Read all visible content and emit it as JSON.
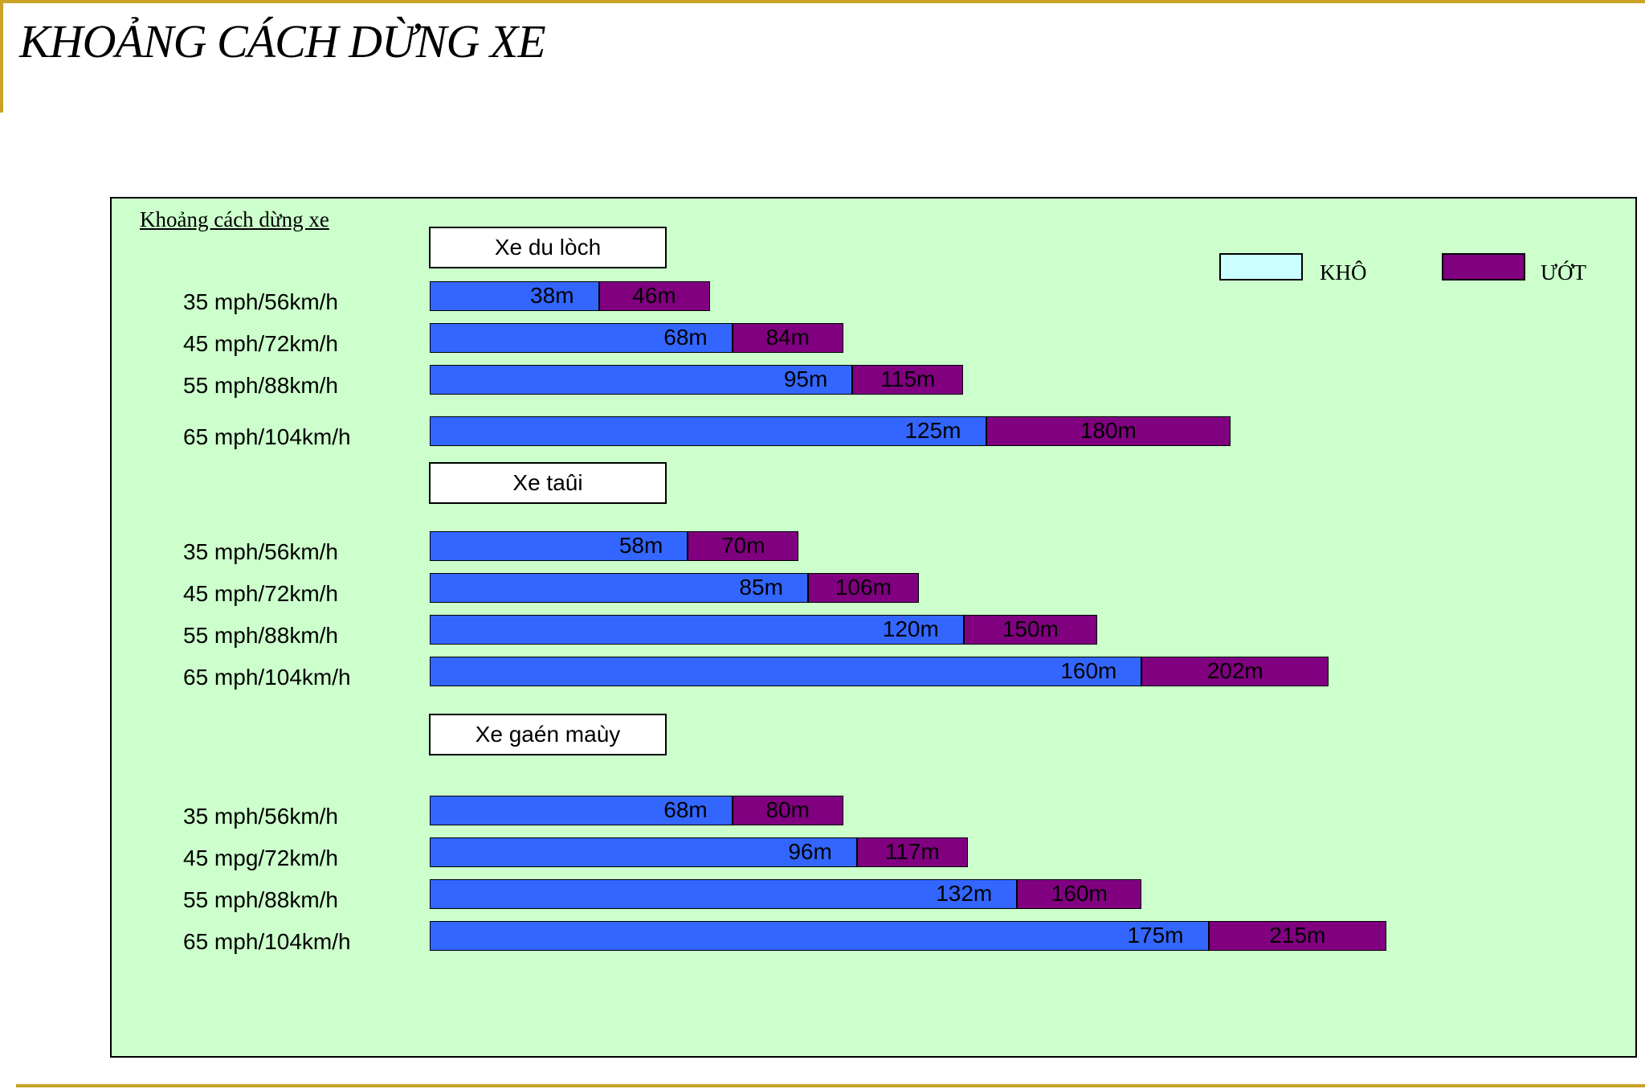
{
  "title": "KHOẢNG CÁCH DỪNG XE",
  "chart_data": {
    "type": "bar",
    "orientation": "horizontal",
    "stacked": true,
    "caption": "Khoảng cách dừng xe",
    "legend": [
      {
        "label": "KHÔ",
        "color": "#ccffff"
      },
      {
        "label": "ƯỚT",
        "color": "#800080"
      }
    ],
    "bar_colors": {
      "dry": "#3366ff",
      "wet": "#800080"
    },
    "groups": [
      {
        "name": "Xe du lòch",
        "rows": [
          {
            "label": "35 mph/56km/h",
            "dry": 38,
            "wet": 46,
            "dry_text": "38m",
            "wet_text": "46m"
          },
          {
            "label": "45 mph/72km/h",
            "dry": 68,
            "wet": 84,
            "dry_text": "68m",
            "wet_text": "84m"
          },
          {
            "label": "55 mph/88km/h",
            "dry": 95,
            "wet": 115,
            "dry_text": "95m",
            "wet_text": "115m"
          },
          {
            "label": "65 mph/104km/h",
            "dry": 125,
            "wet": 180,
            "dry_text": "125m",
            "wet_text": "180m"
          }
        ]
      },
      {
        "name": "Xe taûi",
        "rows": [
          {
            "label": "35 mph/56km/h",
            "dry": 58,
            "wet": 70,
            "dry_text": "58m",
            "wet_text": "70m"
          },
          {
            "label": "45 mph/72km/h",
            "dry": 85,
            "wet": 106,
            "dry_text": "85m",
            "wet_text": "106m"
          },
          {
            "label": "55 mph/88km/h",
            "dry": 120,
            "wet": 150,
            "dry_text": "120m",
            "wet_text": "150m"
          },
          {
            "label": "65 mph/104km/h",
            "dry": 160,
            "wet": 202,
            "dry_text": "160m",
            "wet_text": "202m"
          }
        ]
      },
      {
        "name": "Xe gaén maùy",
        "rows": [
          {
            "label": "35 mph/56km/h",
            "dry": 68,
            "wet": 80,
            "dry_text": "68m",
            "wet_text": "80m"
          },
          {
            "label": "45 mpg/72km/h",
            "dry": 96,
            "wet": 117,
            "dry_text": "96m",
            "wet_text": "117m"
          },
          {
            "label": "55 mph/88km/h",
            "dry": 132,
            "wet": 160,
            "dry_text": "132m",
            "wet_text": "160m"
          },
          {
            "label": "65 mph/104km/h",
            "dry": 175,
            "wet": 215,
            "dry_text": "175m",
            "wet_text": "215m"
          }
        ]
      }
    ]
  }
}
